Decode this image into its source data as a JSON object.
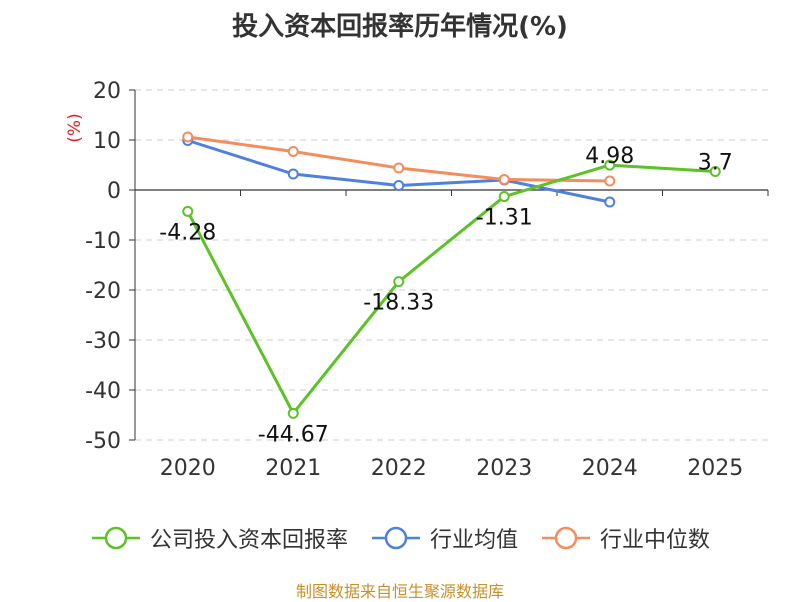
{
  "title": "投入资本回报率历年情况(%)",
  "source": "制图数据来自恒生聚源数据库",
  "chart_data": {
    "type": "line",
    "title": "投入资本回报率历年情况(%)",
    "ylabel": "(%)",
    "xlabel": "",
    "categories": [
      "2020",
      "2021",
      "2022",
      "2023",
      "2024",
      "2025"
    ],
    "ylim": [
      -50,
      20
    ],
    "yticks": [
      "20",
      "10",
      "0",
      "-10",
      "-20",
      "-30",
      "-40",
      "-50"
    ],
    "grid": true,
    "legend_position": "bottom",
    "series": [
      {
        "name": "公司投入资本回报率",
        "color": "#5cc227",
        "values": [
          -4.28,
          -44.67,
          -18.33,
          -1.31,
          4.98,
          3.7
        ],
        "labels": [
          "-4.28",
          "-44.67",
          "-18.33",
          "-1.31",
          "4.98",
          "3.7"
        ]
      },
      {
        "name": "行业均值",
        "color": "#4f80e0",
        "values": [
          9.9,
          3.2,
          0.9,
          2.0,
          -2.4,
          null
        ]
      },
      {
        "name": "行业中位数",
        "color": "#f48c5c",
        "values": [
          10.6,
          7.7,
          4.4,
          2.1,
          1.8,
          null
        ]
      }
    ]
  }
}
